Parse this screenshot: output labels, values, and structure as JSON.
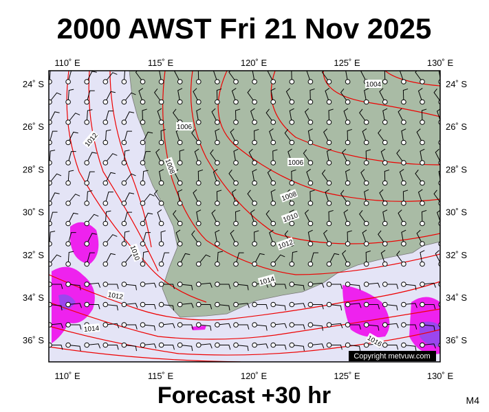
{
  "header": {
    "title": "2000 AWST Fri 21 Nov 2025"
  },
  "map": {
    "lon_labels": [
      "110˚ E",
      "115˚ E",
      "120˚ E",
      "125˚ E",
      "130˚ E"
    ],
    "lat_labels": [
      "24˚ S",
      "26˚ S",
      "28˚ S",
      "30˚ S",
      "32˚ S",
      "34˚ S",
      "36˚ S"
    ],
    "isobar_labels": [
      "1004",
      "1006",
      "1012",
      "1008",
      "1006",
      "1008",
      "1010",
      "1012",
      "1010",
      "1014",
      "1012",
      "1014",
      "1016"
    ],
    "copyright": "Copyright metvuw.com"
  },
  "footer": {
    "forecast": "Forecast +30 hr",
    "model": "M4"
  }
}
